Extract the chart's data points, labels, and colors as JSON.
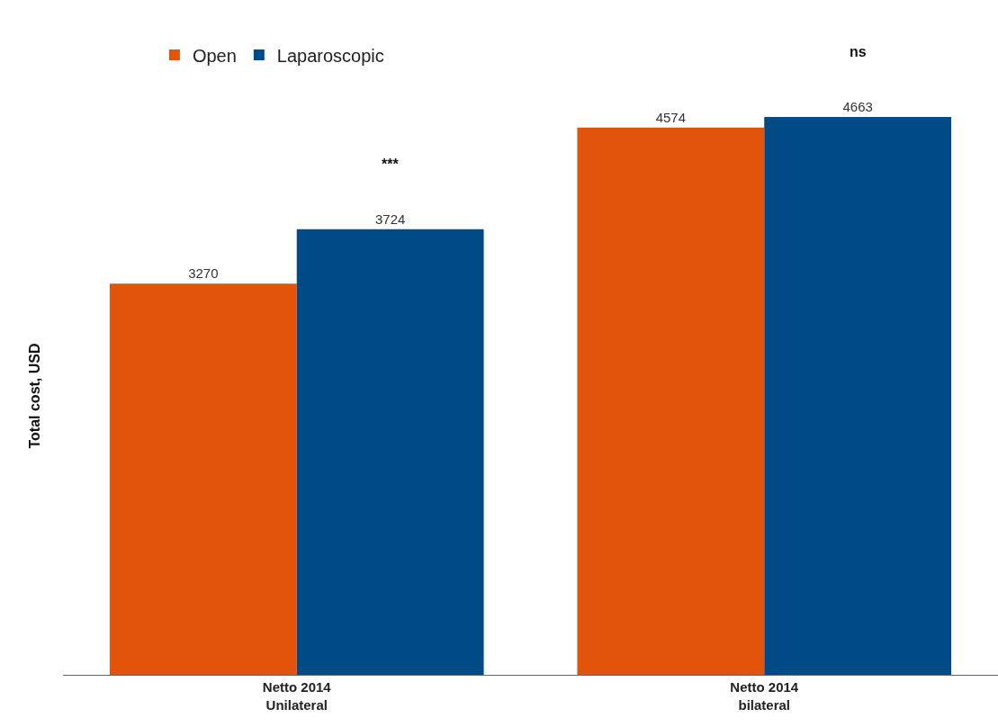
{
  "chart_data": {
    "type": "bar",
    "ylabel": "Total cost, USD",
    "categories": [
      "Netto 2014\nUnilateral",
      "Netto 2014\nbilateral"
    ],
    "series": [
      {
        "name": "Open",
        "color": "#e2540a",
        "values": [
          3270,
          4574
        ]
      },
      {
        "name": "Laparoscopic",
        "color": "#004b87",
        "values": [
          3724,
          4663
        ]
      }
    ],
    "data_labels": true,
    "legend": "top left",
    "grid": false,
    "tick_labels": "x",
    "annotations": [
      "***",
      "ns"
    ]
  }
}
